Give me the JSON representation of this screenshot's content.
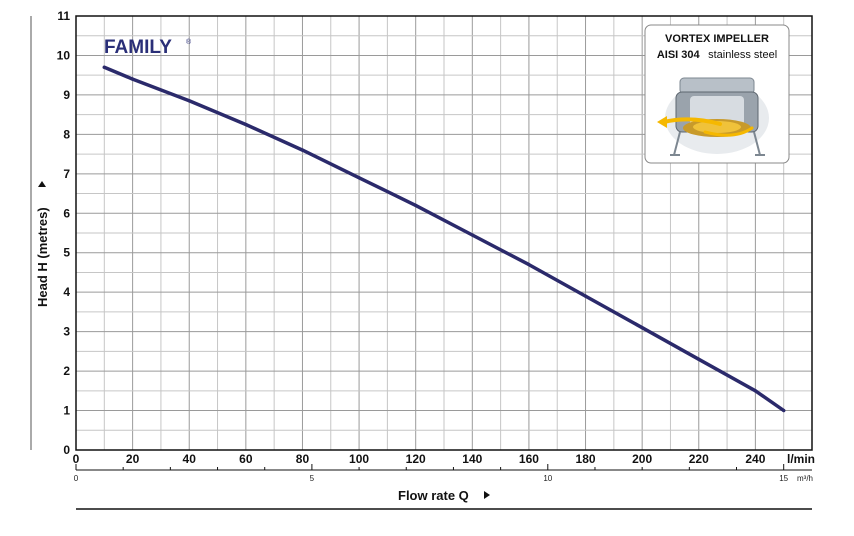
{
  "brand": {
    "name": "FAMILY",
    "mark": "®"
  },
  "inset": {
    "title": "VORTEX IMPELLER",
    "material_bold": "AISI 304",
    "material_rest": "stainless steel",
    "image_icon": "vortex-impeller-icon"
  },
  "chart_data": {
    "type": "line",
    "title": "",
    "xlabel": "Flow rate Q",
    "ylabel": "Head H (metres)",
    "x_unit": "l/min",
    "x_secondary_unit": "m³/h",
    "xlim": [
      0,
      260
    ],
    "ylim": [
      0,
      11
    ],
    "x_ticks": [
      0,
      20,
      40,
      60,
      80,
      100,
      120,
      140,
      160,
      180,
      200,
      220,
      240
    ],
    "y_ticks": [
      0,
      1,
      2,
      3,
      4,
      5,
      6,
      7,
      8,
      9,
      10,
      11
    ],
    "x_secondary_ticks": [
      0,
      5,
      10,
      15
    ],
    "grid": true,
    "line_color": "#2b2a6b",
    "series": [
      {
        "x": [
          10,
          20,
          40,
          60,
          80,
          100,
          120,
          140,
          160,
          180,
          200,
          220,
          240,
          250
        ],
        "values": [
          9.7,
          9.4,
          8.85,
          8.25,
          7.6,
          6.9,
          6.2,
          5.45,
          4.7,
          3.9,
          3.1,
          2.3,
          1.5,
          1.0
        ]
      }
    ]
  }
}
